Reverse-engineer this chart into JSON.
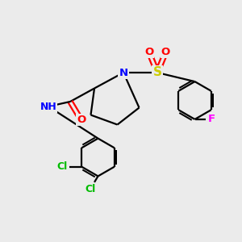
{
  "background_color": "#ebebeb",
  "atom_colors": {
    "C": "#000000",
    "N": "#0000ff",
    "O": "#ff0000",
    "S": "#cccc00",
    "F": "#ff00ff",
    "Cl": "#00bb00",
    "H": "#888888"
  },
  "bond_color": "#000000",
  "bond_width": 1.6,
  "font_size": 9.5,
  "figsize": [
    3.0,
    3.0
  ],
  "dpi": 100
}
